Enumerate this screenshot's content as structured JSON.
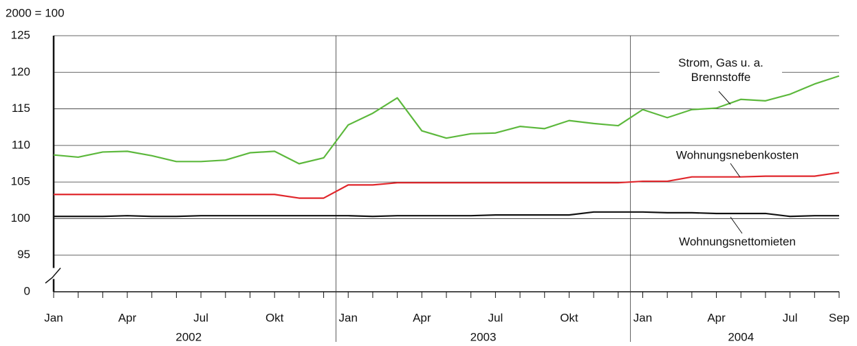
{
  "chart_data": {
    "type": "line",
    "y_unit_label": "2000 = 100",
    "categories": [
      "Jan",
      null,
      null,
      "Apr",
      null,
      null,
      "Jul",
      null,
      null,
      "Okt",
      null,
      null,
      "Jan",
      null,
      null,
      "Apr",
      null,
      null,
      "Jul",
      null,
      null,
      "Okt",
      null,
      null,
      "Jan",
      null,
      null,
      "Apr",
      null,
      null,
      "Jul",
      null,
      "Sep"
    ],
    "years": [
      "2002",
      "2003",
      "2004"
    ],
    "ylim": [
      0,
      125
    ],
    "yticks": [
      0,
      95,
      100,
      105,
      110,
      115,
      120,
      125
    ],
    "y_axis_break": true,
    "grid": true,
    "series": [
      {
        "name": "Strom, Gas u. a. Brennstoffe",
        "color": "#5cb83c",
        "values": [
          108.7,
          108.4,
          109.1,
          109.2,
          108.6,
          107.8,
          107.8,
          108.0,
          109.0,
          109.2,
          107.5,
          108.3,
          112.8,
          114.4,
          116.5,
          112.0,
          111.0,
          111.6,
          111.7,
          112.6,
          112.3,
          113.4,
          113.0,
          112.7,
          114.9,
          113.8,
          114.9,
          115.1,
          116.3,
          116.1,
          117.0,
          118.4,
          119.5
        ]
      },
      {
        "name": "Wohnungsnebenkosten",
        "color": "#e0262b",
        "values": [
          103.3,
          103.3,
          103.3,
          103.3,
          103.3,
          103.3,
          103.3,
          103.3,
          103.3,
          103.3,
          102.8,
          102.8,
          104.6,
          104.6,
          104.9,
          104.9,
          104.9,
          104.9,
          104.9,
          104.9,
          104.9,
          104.9,
          104.9,
          104.9,
          105.1,
          105.1,
          105.7,
          105.7,
          105.7,
          105.8,
          105.8,
          105.8,
          106.3
        ]
      },
      {
        "name": "Wohnungsnettomieten",
        "color": "#111111",
        "values": [
          100.3,
          100.3,
          100.3,
          100.4,
          100.3,
          100.3,
          100.4,
          100.4,
          100.4,
          100.4,
          100.4,
          100.4,
          100.4,
          100.3,
          100.4,
          100.4,
          100.4,
          100.4,
          100.5,
          100.5,
          100.5,
          100.5,
          100.9,
          100.9,
          100.9,
          100.8,
          100.8,
          100.7,
          100.7,
          100.7,
          100.3,
          100.4,
          100.4
        ]
      }
    ]
  }
}
